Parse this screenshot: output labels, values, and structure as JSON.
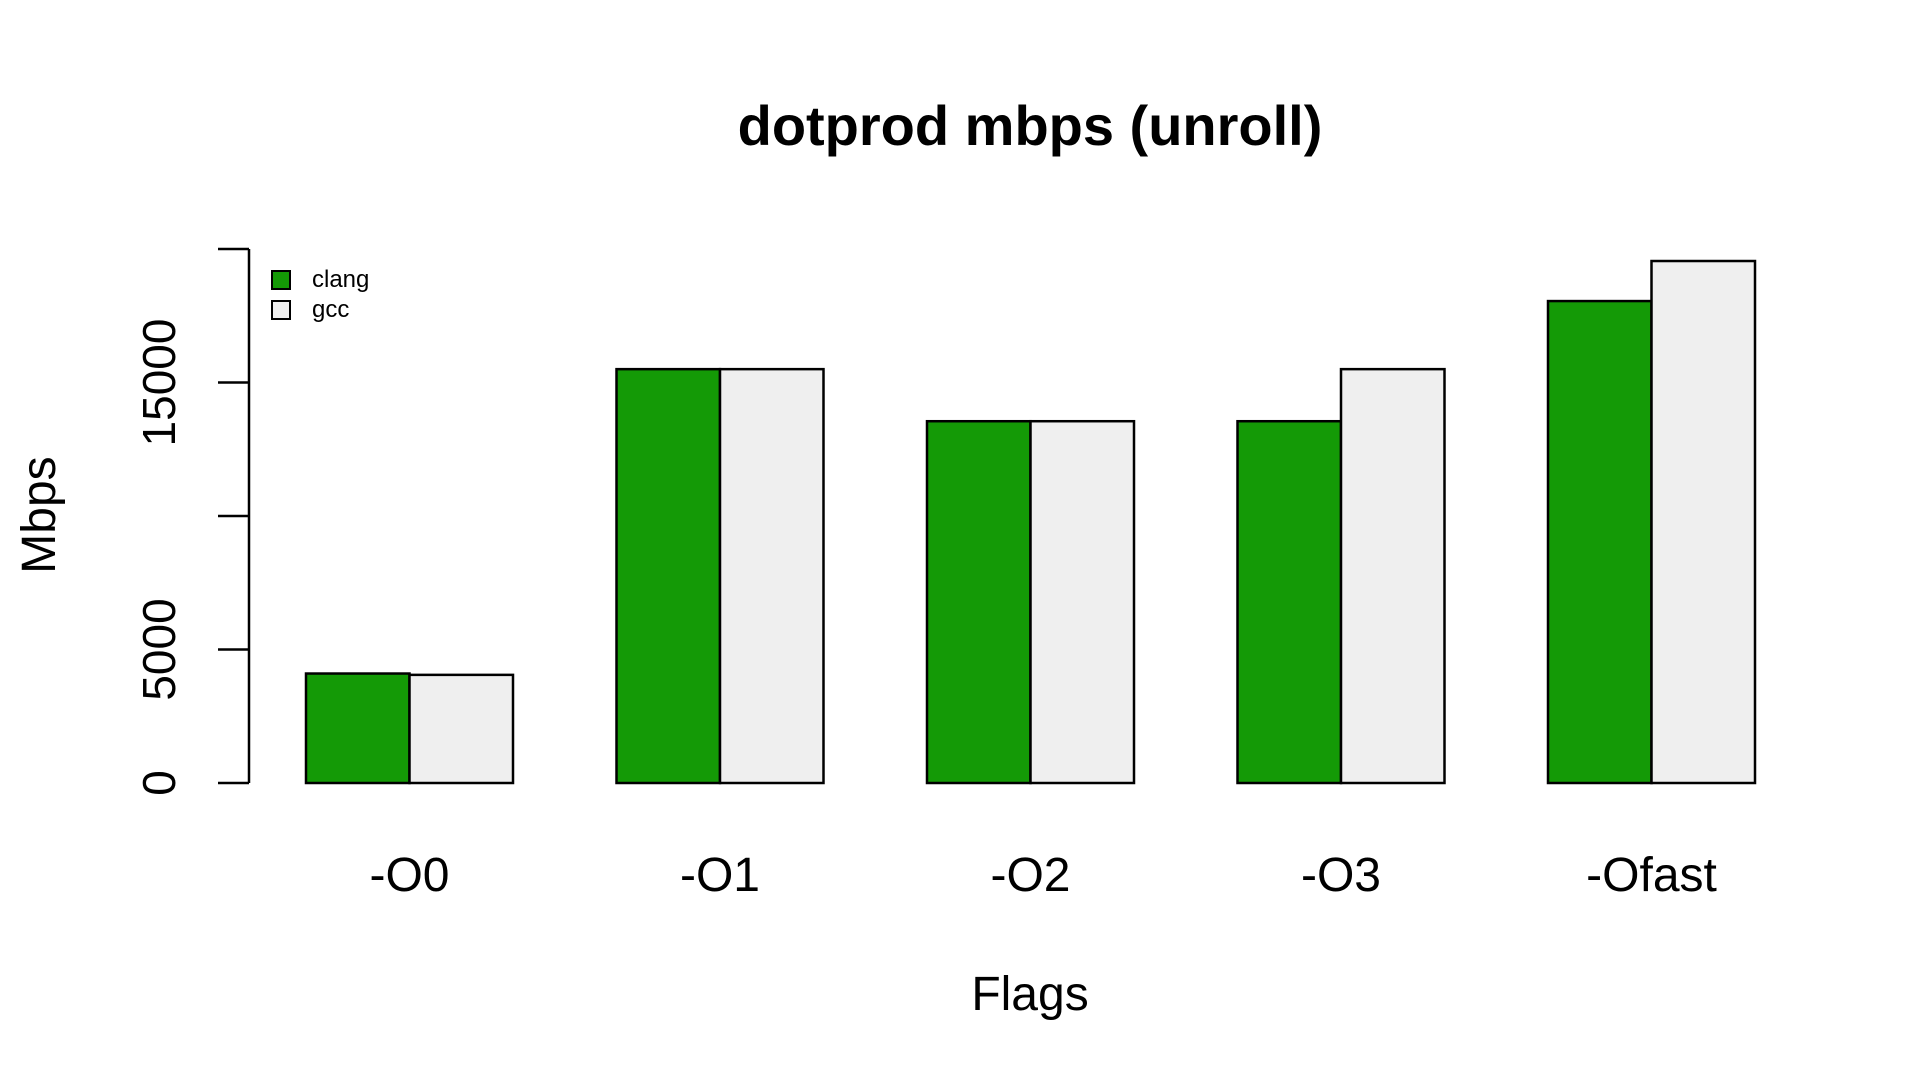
{
  "chart_data": {
    "type": "bar",
    "title": "dotprod mbps (unroll)",
    "xlabel": "Flags",
    "ylabel": "Mbps",
    "categories": [
      "-O0",
      "-O1",
      "-O2",
      "-O3",
      "-Ofast"
    ],
    "series": [
      {
        "name": "clang",
        "color": "#149a06",
        "values": [
          4100,
          15500,
          13550,
          13550,
          18050
        ]
      },
      {
        "name": "gcc",
        "color": "#efefef",
        "values": [
          4050,
          15500,
          13550,
          15500,
          19550
        ]
      }
    ],
    "ylim": [
      0,
      20000
    ],
    "yticks": [
      0,
      5000,
      10000,
      15000,
      20000
    ],
    "ytick_labels": [
      "0",
      "5000",
      "",
      "15000",
      ""
    ],
    "grid": false,
    "legend_position": "top-left"
  }
}
